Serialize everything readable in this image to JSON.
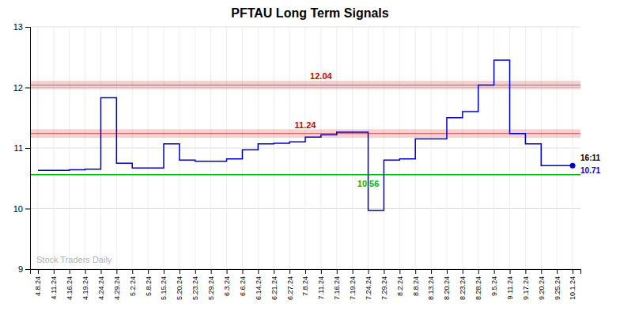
{
  "chart_data": {
    "type": "line",
    "title": "PFTAU Long Term Signals",
    "categories": [
      "4.8.24",
      "4.11.24",
      "4.16.24",
      "4.19.24",
      "4.24.24",
      "4.29.24",
      "5.2.24",
      "5.8.24",
      "5.15.24",
      "5.20.24",
      "5.23.24",
      "5.29.24",
      "6.3.24",
      "6.6.24",
      "6.14.24",
      "6.21.24",
      "6.27.24",
      "7.8.24",
      "7.11.24",
      "7.16.24",
      "7.19.24",
      "7.24.24",
      "7.29.24",
      "8.2.24",
      "8.8.24",
      "8.13.24",
      "8.20.24",
      "8.23.24",
      "8.28.24",
      "9.5.24",
      "9.11.24",
      "9.17.24",
      "9.20.24",
      "9.25.24",
      "10.1.24"
    ],
    "values": [
      10.63,
      10.63,
      10.63,
      10.64,
      10.65,
      11.83,
      10.75,
      10.67,
      10.67,
      11.07,
      10.8,
      10.78,
      10.78,
      10.82,
      10.97,
      11.07,
      11.08,
      11.1,
      11.18,
      11.22,
      11.26,
      11.26,
      9.97,
      10.8,
      10.82,
      11.15,
      11.15,
      11.5,
      11.6,
      12.04,
      12.45,
      11.24,
      11.07,
      10.71,
      10.71
    ],
    "color": "#0000cc",
    "line_style": "step",
    "ylim": [
      9,
      13
    ],
    "yticks": [
      9,
      10,
      11,
      12,
      13
    ],
    "grid": true,
    "reference_lines": [
      {
        "value": 10.56,
        "color": "#00bb00",
        "label": "10.56",
        "x": "7.24.24"
      },
      {
        "value": 11.24,
        "band": [
          11.17,
          11.31
        ],
        "color": "#cc0000",
        "label": "11.24",
        "x": "7.8.24"
      },
      {
        "value": 12.04,
        "band": [
          11.97,
          12.11
        ],
        "color": "#cc0000",
        "label": "12.04",
        "x": "7.11.24"
      }
    ],
    "last_point": {
      "label": "16:11",
      "value_label": "10.71"
    },
    "watermark": "Stock Traders Daily"
  }
}
